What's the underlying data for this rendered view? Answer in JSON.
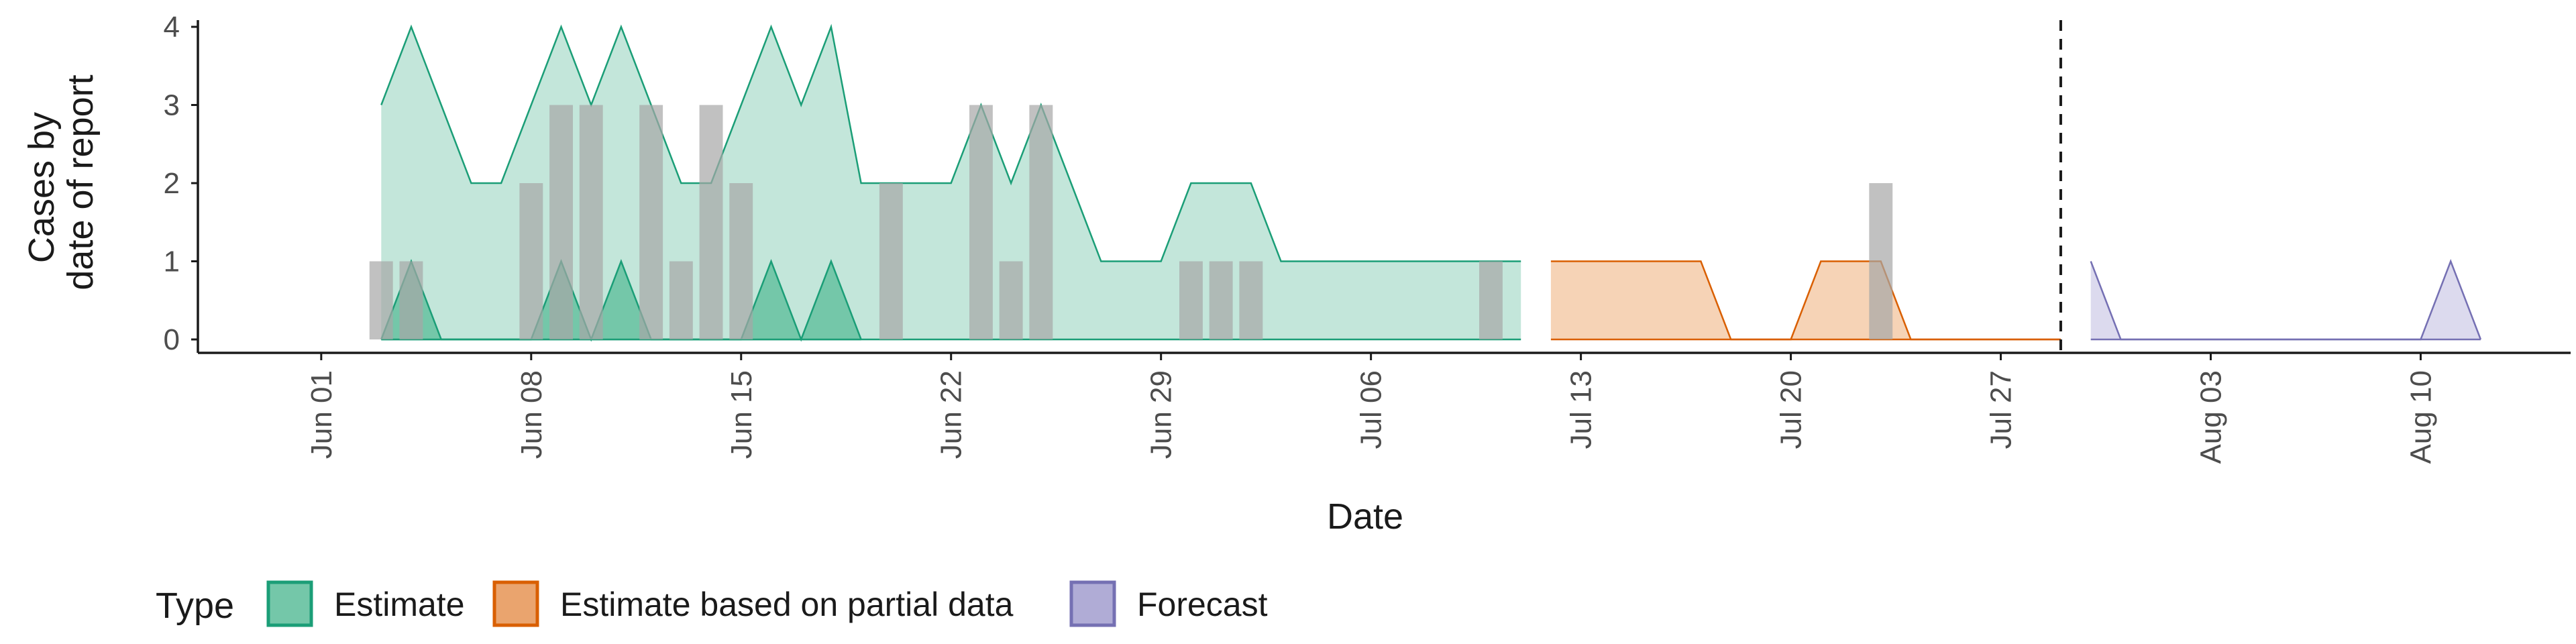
{
  "chart_data": {
    "type": "area",
    "title": "",
    "xlabel": "Date",
    "ylabel": [
      "Cases by",
      "date of report"
    ],
    "x_range": [
      "2020-05-28",
      "2020-08-15"
    ],
    "ylim": [
      0,
      4
    ],
    "yticks": [
      0,
      1,
      2,
      3,
      4
    ],
    "x_ticks": [
      {
        "date": "2020-06-01",
        "label": "Jun 01"
      },
      {
        "date": "2020-06-08",
        "label": "Jun 08"
      },
      {
        "date": "2020-06-15",
        "label": "Jun 15"
      },
      {
        "date": "2020-06-22",
        "label": "Jun 22"
      },
      {
        "date": "2020-06-29",
        "label": "Jun 29"
      },
      {
        "date": "2020-07-06",
        "label": "Jul 06"
      },
      {
        "date": "2020-07-13",
        "label": "Jul 13"
      },
      {
        "date": "2020-07-20",
        "label": "Jul 20"
      },
      {
        "date": "2020-07-27",
        "label": "Jul 27"
      },
      {
        "date": "2020-08-03",
        "label": "Aug 03"
      },
      {
        "date": "2020-08-10",
        "label": "Aug 10"
      }
    ],
    "forecast_date": "2020-07-29",
    "grid": false,
    "legend": {
      "title": "Type",
      "position": "bottom-left",
      "entries": [
        {
          "label": "Estimate",
          "fill": "#74c7a9",
          "stroke": "#1b9e77"
        },
        {
          "label": "Estimate based on partial data",
          "fill": "#eaa46e",
          "stroke": "#d95f02"
        },
        {
          "label": "Forecast",
          "fill": "#b0acd6",
          "stroke": "#7570b3"
        }
      ]
    },
    "reported_cases": {
      "color": "#a6a6a6",
      "points": [
        {
          "date": "2020-06-03",
          "value": 1
        },
        {
          "date": "2020-06-04",
          "value": 1
        },
        {
          "date": "2020-06-08",
          "value": 2
        },
        {
          "date": "2020-06-09",
          "value": 3
        },
        {
          "date": "2020-06-10",
          "value": 3
        },
        {
          "date": "2020-06-12",
          "value": 3
        },
        {
          "date": "2020-06-13",
          "value": 1
        },
        {
          "date": "2020-06-14",
          "value": 3
        },
        {
          "date": "2020-06-15",
          "value": 2
        },
        {
          "date": "2020-06-20",
          "value": 2
        },
        {
          "date": "2020-06-23",
          "value": 3
        },
        {
          "date": "2020-06-24",
          "value": 1
        },
        {
          "date": "2020-06-25",
          "value": 3
        },
        {
          "date": "2020-06-30",
          "value": 1
        },
        {
          "date": "2020-07-01",
          "value": 1
        },
        {
          "date": "2020-07-02",
          "value": 1
        },
        {
          "date": "2020-07-10",
          "value": 1
        },
        {
          "date": "2020-07-23",
          "value": 2
        }
      ]
    },
    "series": [
      {
        "type_label": "Estimate",
        "band": "outer",
        "fill": "#c3e6da",
        "stroke": "#1b9e77",
        "points": [
          {
            "date": "2020-06-03",
            "lower": 0,
            "upper": 3
          },
          {
            "date": "2020-06-04",
            "lower": 0,
            "upper": 4
          },
          {
            "date": "2020-06-05",
            "lower": 0,
            "upper": 3
          },
          {
            "date": "2020-06-06",
            "lower": 0,
            "upper": 2
          },
          {
            "date": "2020-06-07",
            "lower": 0,
            "upper": 2
          },
          {
            "date": "2020-06-08",
            "lower": 0,
            "upper": 3
          },
          {
            "date": "2020-06-09",
            "lower": 0,
            "upper": 4
          },
          {
            "date": "2020-06-10",
            "lower": 0,
            "upper": 3
          },
          {
            "date": "2020-06-11",
            "lower": 0,
            "upper": 4
          },
          {
            "date": "2020-06-12",
            "lower": 0,
            "upper": 3
          },
          {
            "date": "2020-06-13",
            "lower": 0,
            "upper": 2
          },
          {
            "date": "2020-06-14",
            "lower": 0,
            "upper": 2
          },
          {
            "date": "2020-06-15",
            "lower": 0,
            "upper": 3
          },
          {
            "date": "2020-06-16",
            "lower": 0,
            "upper": 4
          },
          {
            "date": "2020-06-17",
            "lower": 0,
            "upper": 3
          },
          {
            "date": "2020-06-18",
            "lower": 0,
            "upper": 4
          },
          {
            "date": "2020-06-19",
            "lower": 0,
            "upper": 2
          },
          {
            "date": "2020-06-20",
            "lower": 0,
            "upper": 2
          },
          {
            "date": "2020-06-21",
            "lower": 0,
            "upper": 2
          },
          {
            "date": "2020-06-22",
            "lower": 0,
            "upper": 2
          },
          {
            "date": "2020-06-23",
            "lower": 0,
            "upper": 3
          },
          {
            "date": "2020-06-24",
            "lower": 0,
            "upper": 2
          },
          {
            "date": "2020-06-25",
            "lower": 0,
            "upper": 3
          },
          {
            "date": "2020-06-26",
            "lower": 0,
            "upper": 2
          },
          {
            "date": "2020-06-27",
            "lower": 0,
            "upper": 1
          },
          {
            "date": "2020-06-28",
            "lower": 0,
            "upper": 1
          },
          {
            "date": "2020-06-29",
            "lower": 0,
            "upper": 1
          },
          {
            "date": "2020-06-30",
            "lower": 0,
            "upper": 2
          },
          {
            "date": "2020-07-01",
            "lower": 0,
            "upper": 2
          },
          {
            "date": "2020-07-02",
            "lower": 0,
            "upper": 2
          },
          {
            "date": "2020-07-03",
            "lower": 0,
            "upper": 1
          },
          {
            "date": "2020-07-04",
            "lower": 0,
            "upper": 1
          },
          {
            "date": "2020-07-05",
            "lower": 0,
            "upper": 1
          },
          {
            "date": "2020-07-06",
            "lower": 0,
            "upper": 1
          },
          {
            "date": "2020-07-07",
            "lower": 0,
            "upper": 1
          },
          {
            "date": "2020-07-08",
            "lower": 0,
            "upper": 1
          },
          {
            "date": "2020-07-09",
            "lower": 0,
            "upper": 1
          },
          {
            "date": "2020-07-10",
            "lower": 0,
            "upper": 1
          },
          {
            "date": "2020-07-11",
            "lower": 0,
            "upper": 1
          }
        ]
      },
      {
        "type_label": "Estimate",
        "band": "inner",
        "fill": "#74c7a9",
        "stroke": "#1b9e77",
        "points": [
          {
            "date": "2020-06-03",
            "lower": 0,
            "upper": 0
          },
          {
            "date": "2020-06-04",
            "lower": 0,
            "upper": 1
          },
          {
            "date": "2020-06-05",
            "lower": 0,
            "upper": 0
          },
          {
            "date": "2020-06-08",
            "lower": 0,
            "upper": 0
          },
          {
            "date": "2020-06-09",
            "lower": 0,
            "upper": 1
          },
          {
            "date": "2020-06-10",
            "lower": 0,
            "upper": 0
          },
          {
            "date": "2020-06-11",
            "lower": 0,
            "upper": 1
          },
          {
            "date": "2020-06-12",
            "lower": 0,
            "upper": 0
          },
          {
            "date": "2020-06-15",
            "lower": 0,
            "upper": 0
          },
          {
            "date": "2020-06-16",
            "lower": 0,
            "upper": 1
          },
          {
            "date": "2020-06-17",
            "lower": 0,
            "upper": 0
          },
          {
            "date": "2020-06-18",
            "lower": 0,
            "upper": 1
          },
          {
            "date": "2020-06-19",
            "lower": 0,
            "upper": 0
          }
        ]
      },
      {
        "type_label": "Estimate based on partial data",
        "band": "outer",
        "fill": "#f6d3b6",
        "stroke": "#d95f02",
        "points": [
          {
            "date": "2020-07-12",
            "lower": 0,
            "upper": 1
          },
          {
            "date": "2020-07-13",
            "lower": 0,
            "upper": 1
          },
          {
            "date": "2020-07-14",
            "lower": 0,
            "upper": 1
          },
          {
            "date": "2020-07-15",
            "lower": 0,
            "upper": 1
          },
          {
            "date": "2020-07-16",
            "lower": 0,
            "upper": 1
          },
          {
            "date": "2020-07-17",
            "lower": 0,
            "upper": 1
          },
          {
            "date": "2020-07-18",
            "lower": 0,
            "upper": 0
          },
          {
            "date": "2020-07-19",
            "lower": 0,
            "upper": 0
          },
          {
            "date": "2020-07-20",
            "lower": 0,
            "upper": 0
          },
          {
            "date": "2020-07-21",
            "lower": 0,
            "upper": 1
          },
          {
            "date": "2020-07-22",
            "lower": 0,
            "upper": 1
          },
          {
            "date": "2020-07-23",
            "lower": 0,
            "upper": 1
          },
          {
            "date": "2020-07-24",
            "lower": 0,
            "upper": 0
          },
          {
            "date": "2020-07-25",
            "lower": 0,
            "upper": 0
          },
          {
            "date": "2020-07-26",
            "lower": 0,
            "upper": 0
          },
          {
            "date": "2020-07-27",
            "lower": 0,
            "upper": 0
          },
          {
            "date": "2020-07-28",
            "lower": 0,
            "upper": 0
          },
          {
            "date": "2020-07-29",
            "lower": 0,
            "upper": 0
          }
        ]
      },
      {
        "type_label": "Forecast",
        "band": "outer",
        "fill": "#dcdaee",
        "stroke": "#7570b3",
        "points": [
          {
            "date": "2020-07-30",
            "lower": 0,
            "upper": 1
          },
          {
            "date": "2020-07-31",
            "lower": 0,
            "upper": 0
          },
          {
            "date": "2020-08-01",
            "lower": 0,
            "upper": 0
          },
          {
            "date": "2020-08-02",
            "lower": 0,
            "upper": 0
          },
          {
            "date": "2020-08-03",
            "lower": 0,
            "upper": 0
          },
          {
            "date": "2020-08-04",
            "lower": 0,
            "upper": 0
          },
          {
            "date": "2020-08-05",
            "lower": 0,
            "upper": 0
          },
          {
            "date": "2020-08-06",
            "lower": 0,
            "upper": 0
          },
          {
            "date": "2020-08-07",
            "lower": 0,
            "upper": 0
          },
          {
            "date": "2020-08-08",
            "lower": 0,
            "upper": 0
          },
          {
            "date": "2020-08-09",
            "lower": 0,
            "upper": 0
          },
          {
            "date": "2020-08-10",
            "lower": 0,
            "upper": 0
          },
          {
            "date": "2020-08-11",
            "lower": 0,
            "upper": 1
          },
          {
            "date": "2020-08-12",
            "lower": 0,
            "upper": 0
          }
        ]
      }
    ]
  }
}
